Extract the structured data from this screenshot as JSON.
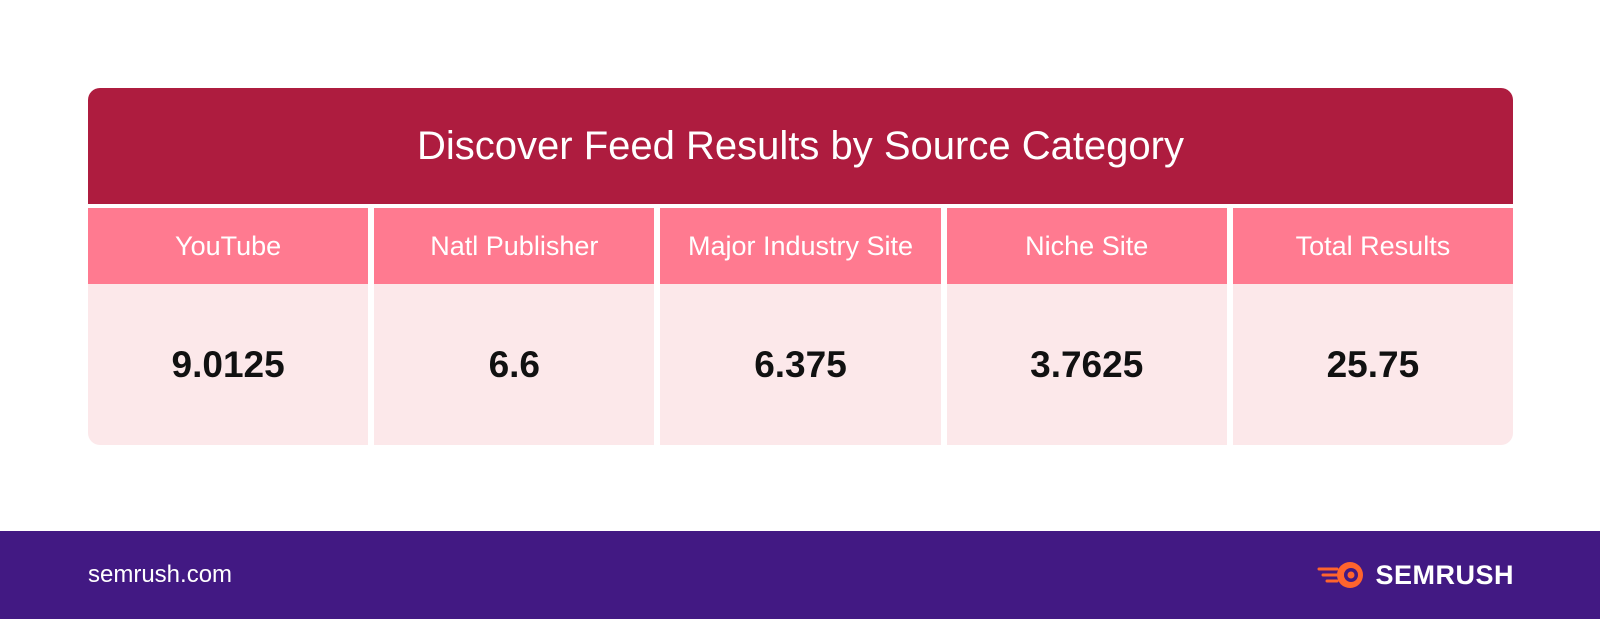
{
  "colors": {
    "title_bg": "#AE1C3F",
    "header_bg": "#FF7A90",
    "value_bg": "#FCE8EA",
    "footer_bg": "#421983",
    "brand_orange": "#FF642D"
  },
  "chart_data": {
    "type": "table",
    "title": "Discover Feed Results by Source Category",
    "columns": [
      "YouTube",
      "Natl Publisher",
      "Major Industry Site",
      "Niche Site",
      "Total Results"
    ],
    "values": [
      "9.0125",
      "6.6",
      "6.375",
      "3.7625",
      "25.75"
    ]
  },
  "footer": {
    "site": "semrush.com",
    "brand_name": "SEMRUSH",
    "brand_icon": "semrush-flame-logo-icon"
  }
}
